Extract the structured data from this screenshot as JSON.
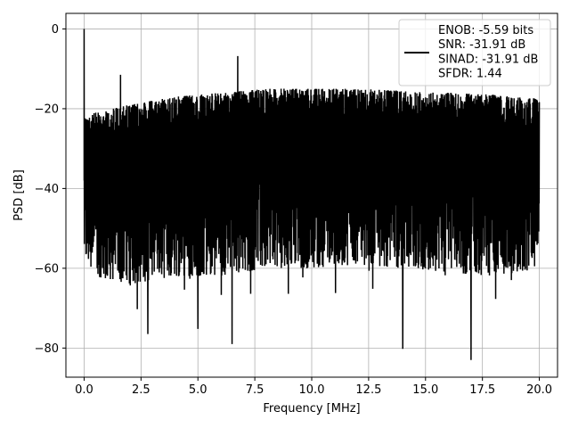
{
  "chart_data": {
    "type": "line",
    "title": "",
    "xlabel": "Frequency [MHz]",
    "ylabel": "PSD [dB]",
    "xlim": [
      -0.8,
      20.8
    ],
    "ylim": [
      -87.3,
      3.9
    ],
    "x_ticks": [
      0.0,
      2.5,
      5.0,
      7.5,
      10.0,
      12.5,
      15.0,
      17.5,
      20.0
    ],
    "x_tick_labels": [
      "0.0",
      "2.5",
      "5.0",
      "7.5",
      "10.0",
      "12.5",
      "15.0",
      "17.5",
      "20.0"
    ],
    "y_ticks": [
      0,
      -20,
      -40,
      -60,
      -80
    ],
    "y_tick_labels": [
      "0",
      "−20",
      "−40",
      "−60",
      "−80"
    ],
    "grid": true,
    "legend_position": "top-right",
    "legend_lines": [
      "ENOB: -5.59 bits",
      "SNR: -31.91 dB",
      "SINAD: -31.91 dB",
      "SFDR: 1.44"
    ],
    "series": [
      {
        "color": "#000000",
        "description": "noise-floor PSD, densely oscillating",
        "x_range": [
          0.0,
          20.0
        ],
        "upper_envelope": {
          "x": [
            0.0,
            0.5,
            2.0,
            4.0,
            6.0,
            8.0,
            10.0,
            12.0,
            14.0,
            16.0,
            18.0,
            20.0
          ],
          "y": [
            -22,
            -21,
            -19,
            -17,
            -16,
            -15,
            -15,
            -15,
            -15.5,
            -16,
            -16.5,
            -17.5
          ]
        },
        "lower_envelope": {
          "x": [
            0.0,
            0.5,
            2.0,
            4.0,
            6.0,
            8.0,
            10.0,
            12.0,
            14.0,
            16.0,
            18.0,
            20.0
          ],
          "y": [
            -58,
            -62,
            -64,
            -62,
            -62,
            -60,
            -60,
            -59,
            -60,
            -61,
            -62,
            -60
          ]
        },
        "peaks": [
          {
            "x": 0.0,
            "y": 0.0
          },
          {
            "x": 1.6,
            "y": -11.5
          },
          {
            "x": 6.75,
            "y": -6.8
          }
        ],
        "dips": [
          {
            "x": 2.8,
            "y": -76.5
          },
          {
            "x": 5.0,
            "y": -75.2
          },
          {
            "x": 6.5,
            "y": -79.0
          },
          {
            "x": 14.0,
            "y": -80.2
          },
          {
            "x": 17.0,
            "y": -83.0
          }
        ]
      }
    ]
  }
}
